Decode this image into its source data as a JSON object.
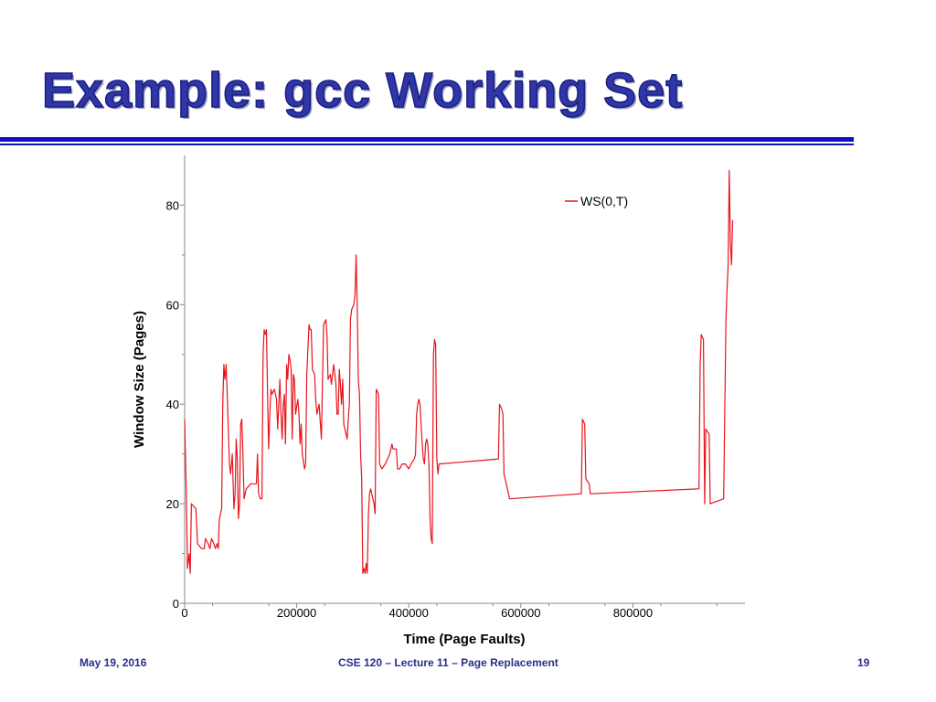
{
  "slide": {
    "title": "Example: gcc Working Set",
    "footer_date": "May 19, 2016",
    "footer_course": "CSE 120 – Lecture 11 – Page Replacement",
    "page_number": "19"
  },
  "colors": {
    "title": "#3036a8",
    "rule": "#1010c0",
    "series": "#e8141c",
    "axis": "#888888"
  },
  "chart_data": {
    "type": "line",
    "title": "",
    "xlabel": "Time (Page Faults)",
    "ylabel": "Window Size (Pages)",
    "xlim": [
      0,
      1000000
    ],
    "ylim": [
      0,
      90
    ],
    "xticks": [
      0,
      200000,
      400000,
      600000,
      800000
    ],
    "xtick_labels": [
      "0",
      "200000",
      "400000",
      "600000",
      "800000"
    ],
    "yticks": [
      0,
      20,
      40,
      60,
      80
    ],
    "ytick_labels": [
      "0",
      "20",
      "40",
      "60",
      "80"
    ],
    "legend_position": "top-right",
    "grid": false,
    "series": [
      {
        "name": "WS(0,T)",
        "points": [
          [
            0,
            37
          ],
          [
            3000,
            22
          ],
          [
            5000,
            7
          ],
          [
            8000,
            10
          ],
          [
            10000,
            6
          ],
          [
            12000,
            20
          ],
          [
            20000,
            19
          ],
          [
            23000,
            12
          ],
          [
            30000,
            11
          ],
          [
            35000,
            11
          ],
          [
            37000,
            13
          ],
          [
            42000,
            12
          ],
          [
            45000,
            11
          ],
          [
            48000,
            13
          ],
          [
            52000,
            12
          ],
          [
            55000,
            11
          ],
          [
            58000,
            12
          ],
          [
            60000,
            11
          ],
          [
            62000,
            17
          ],
          [
            66000,
            19
          ],
          [
            68000,
            40
          ],
          [
            70000,
            48
          ],
          [
            72000,
            45
          ],
          [
            74000,
            48
          ],
          [
            76000,
            42
          ],
          [
            80000,
            28
          ],
          [
            82000,
            26
          ],
          [
            85000,
            30
          ],
          [
            88000,
            19
          ],
          [
            90000,
            22
          ],
          [
            92000,
            33
          ],
          [
            94000,
            29
          ],
          [
            96000,
            17
          ],
          [
            98000,
            20
          ],
          [
            100000,
            36
          ],
          [
            102000,
            37
          ],
          [
            104000,
            30
          ],
          [
            106000,
            21
          ],
          [
            110000,
            23
          ],
          [
            118000,
            24
          ],
          [
            128000,
            24
          ],
          [
            130000,
            30
          ],
          [
            132000,
            22
          ],
          [
            135000,
            21
          ],
          [
            138000,
            21
          ],
          [
            140000,
            50
          ],
          [
            142000,
            55
          ],
          [
            144000,
            54
          ],
          [
            146000,
            55
          ],
          [
            148000,
            42
          ],
          [
            150000,
            31
          ],
          [
            152000,
            38
          ],
          [
            154000,
            43
          ],
          [
            156000,
            42
          ],
          [
            160000,
            43
          ],
          [
            164000,
            41
          ],
          [
            166000,
            35
          ],
          [
            170000,
            45
          ],
          [
            172000,
            38
          ],
          [
            174000,
            33
          ],
          [
            176000,
            40
          ],
          [
            178000,
            42
          ],
          [
            180000,
            32
          ],
          [
            182000,
            48
          ],
          [
            184000,
            45
          ],
          [
            186000,
            50
          ],
          [
            188000,
            49
          ],
          [
            190000,
            47
          ],
          [
            192000,
            33
          ],
          [
            194000,
            46
          ],
          [
            196000,
            45
          ],
          [
            198000,
            38
          ],
          [
            202000,
            41
          ],
          [
            204000,
            38
          ],
          [
            206000,
            32
          ],
          [
            208000,
            36
          ],
          [
            210000,
            30
          ],
          [
            214000,
            27
          ],
          [
            216000,
            28
          ],
          [
            218000,
            46
          ],
          [
            222000,
            56
          ],
          [
            224000,
            55
          ],
          [
            226000,
            55
          ],
          [
            228000,
            47
          ],
          [
            232000,
            46
          ],
          [
            234000,
            41
          ],
          [
            236000,
            38
          ],
          [
            240000,
            40
          ],
          [
            244000,
            33
          ],
          [
            248000,
            56
          ],
          [
            252000,
            57
          ],
          [
            254000,
            54
          ],
          [
            256000,
            45
          ],
          [
            260000,
            46
          ],
          [
            262000,
            44
          ],
          [
            266000,
            48
          ],
          [
            268000,
            46
          ],
          [
            270000,
            44
          ],
          [
            272000,
            38
          ],
          [
            274000,
            38
          ],
          [
            276000,
            47
          ],
          [
            278000,
            44
          ],
          [
            280000,
            40
          ],
          [
            282000,
            45
          ],
          [
            284000,
            36
          ],
          [
            286000,
            35
          ],
          [
            290000,
            33
          ],
          [
            292000,
            37
          ],
          [
            294000,
            40
          ],
          [
            296000,
            57
          ],
          [
            298000,
            59
          ],
          [
            302000,
            60
          ],
          [
            304000,
            62
          ],
          [
            306000,
            70
          ],
          [
            308000,
            60
          ],
          [
            310000,
            45
          ],
          [
            312000,
            42
          ],
          [
            314000,
            30
          ],
          [
            316000,
            25
          ],
          [
            318000,
            6
          ],
          [
            320000,
            7
          ],
          [
            322000,
            6
          ],
          [
            324000,
            8
          ],
          [
            326000,
            6
          ],
          [
            328000,
            18
          ],
          [
            330000,
            22
          ],
          [
            332000,
            23
          ],
          [
            334000,
            22
          ],
          [
            338000,
            20
          ],
          [
            340000,
            18
          ],
          [
            342000,
            43
          ],
          [
            346000,
            42
          ],
          [
            348000,
            28
          ],
          [
            352000,
            27
          ],
          [
            358000,
            28
          ],
          [
            362000,
            29
          ],
          [
            366000,
            30
          ],
          [
            370000,
            32
          ],
          [
            372000,
            31
          ],
          [
            378000,
            31
          ],
          [
            380000,
            27
          ],
          [
            384000,
            27
          ],
          [
            388000,
            28
          ],
          [
            394000,
            28
          ],
          [
            400000,
            27
          ],
          [
            404000,
            28
          ],
          [
            410000,
            29
          ],
          [
            412000,
            30
          ],
          [
            414000,
            38
          ],
          [
            416000,
            40
          ],
          [
            418000,
            41
          ],
          [
            420000,
            40
          ],
          [
            422000,
            36
          ],
          [
            424000,
            32
          ],
          [
            426000,
            29
          ],
          [
            428000,
            28
          ],
          [
            430000,
            32
          ],
          [
            432000,
            33
          ],
          [
            434000,
            32
          ],
          [
            436000,
            28
          ],
          [
            438000,
            17
          ],
          [
            440000,
            13
          ],
          [
            442000,
            12
          ],
          [
            444000,
            50
          ],
          [
            446000,
            53
          ],
          [
            448000,
            52
          ],
          [
            450000,
            29
          ],
          [
            452000,
            26
          ],
          [
            454000,
            28
          ],
          [
            560000,
            29
          ],
          [
            562000,
            40
          ],
          [
            566000,
            39
          ],
          [
            568000,
            38
          ],
          [
            570000,
            26
          ],
          [
            572000,
            25
          ],
          [
            574000,
            24
          ],
          [
            578000,
            22
          ],
          [
            580000,
            21
          ],
          [
            708000,
            22
          ],
          [
            710000,
            37
          ],
          [
            714000,
            36
          ],
          [
            716000,
            25
          ],
          [
            722000,
            24
          ],
          [
            724000,
            22
          ],
          [
            918000,
            23
          ],
          [
            920000,
            48
          ],
          [
            922000,
            54
          ],
          [
            926000,
            53
          ],
          [
            928000,
            20
          ],
          [
            930000,
            35
          ],
          [
            936000,
            34
          ],
          [
            938000,
            20
          ],
          [
            962000,
            21
          ],
          [
            966000,
            57
          ],
          [
            968000,
            63
          ],
          [
            970000,
            68
          ],
          [
            972000,
            87
          ],
          [
            974000,
            72
          ],
          [
            976000,
            68
          ],
          [
            978000,
            77
          ]
        ]
      }
    ]
  }
}
